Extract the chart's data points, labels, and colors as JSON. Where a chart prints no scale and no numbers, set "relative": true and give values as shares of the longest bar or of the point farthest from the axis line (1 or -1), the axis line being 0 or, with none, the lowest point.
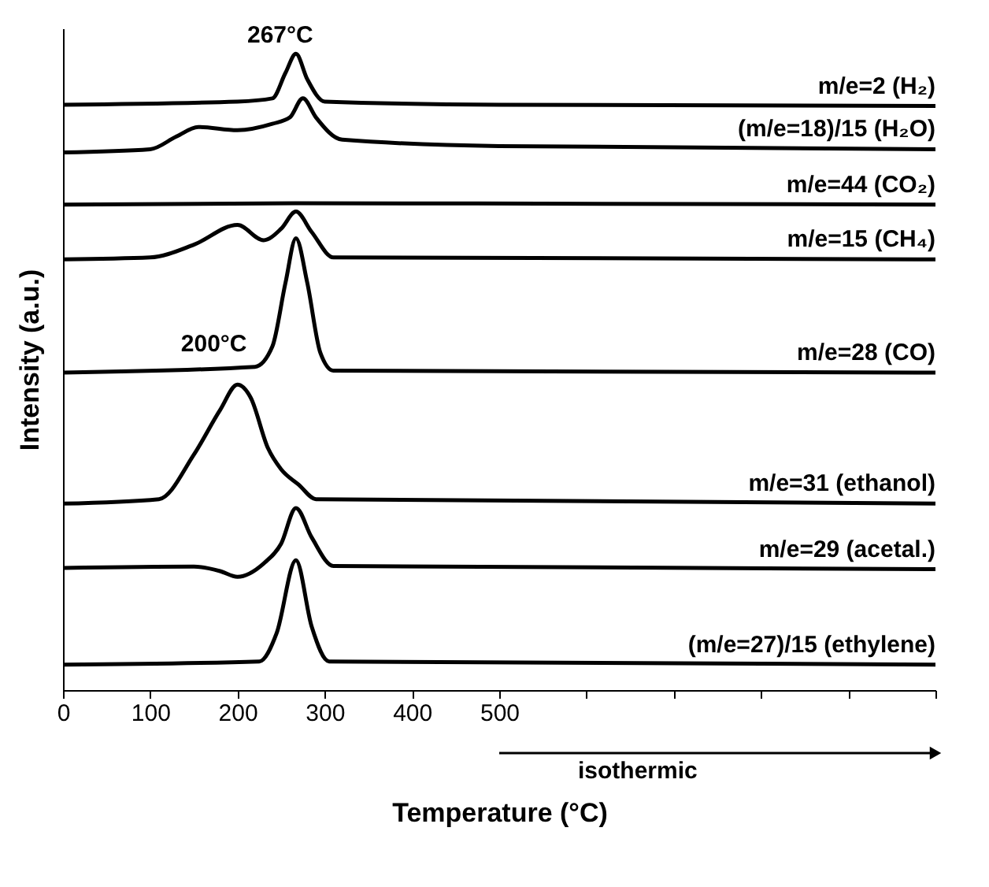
{
  "chart_data": {
    "type": "line",
    "relative": true,
    "xlabel": "Temperature (°C)",
    "ylabel": "Intensity (a.u.)",
    "xlim": [
      0,
      1000
    ],
    "xticks": [
      0,
      100,
      200,
      300,
      400,
      500,
      {
        "value": 600,
        "label": null
      },
      {
        "value": 700,
        "label": null
      },
      {
        "value": 800,
        "label": null
      },
      {
        "value": 900,
        "label": null
      },
      {
        "value": 1000,
        "label": null
      }
    ],
    "grid": false,
    "marker": "none",
    "line_style": "solid",
    "series": [
      {
        "name": "m/e=2 (H₂)",
        "color": "#000000",
        "x": [
          0,
          200,
          240,
          255,
          267,
          280,
          300,
          500,
          1000
        ],
        "values": [
          0.92,
          0.925,
          0.93,
          0.97,
          1.0,
          0.96,
          0.925,
          0.92,
          0.918
        ]
      },
      {
        "name": "(m/e=18)/15 (H₂O)",
        "color": "#000000",
        "x": [
          0,
          100,
          130,
          155,
          200,
          240,
          260,
          275,
          290,
          320,
          500,
          1000
        ],
        "values": [
          0.845,
          0.85,
          0.87,
          0.885,
          0.88,
          0.89,
          0.9,
          0.93,
          0.9,
          0.865,
          0.855,
          0.85
        ]
      },
      {
        "name": "m/e=44 (CO₂)",
        "color": "#000000",
        "x": [
          0,
          267,
          1000
        ],
        "values": [
          0.763,
          0.765,
          0.763
        ]
      },
      {
        "name": "m/e=15 (CH₄)",
        "color": "#000000",
        "x": [
          0,
          100,
          150,
          200,
          230,
          250,
          267,
          285,
          310,
          1000
        ],
        "values": [
          0.677,
          0.68,
          0.7,
          0.731,
          0.707,
          0.725,
          0.752,
          0.72,
          0.68,
          0.677
        ]
      },
      {
        "name": "m/e=28 (CO)",
        "color": "#000000",
        "x": [
          0,
          220,
          240,
          255,
          267,
          280,
          295,
          310,
          1000
        ],
        "values": [
          0.499,
          0.508,
          0.54,
          0.64,
          0.71,
          0.64,
          0.53,
          0.502,
          0.499
        ]
      },
      {
        "name": "m/e=31 (ethanol)",
        "color": "#000000",
        "x": [
          0,
          110,
          150,
          180,
          200,
          215,
          235,
          250,
          270,
          290,
          1000
        ],
        "values": [
          0.293,
          0.3,
          0.37,
          0.44,
          0.48,
          0.46,
          0.38,
          0.347,
          0.323,
          0.3,
          0.293
        ]
      },
      {
        "name": "m/e=29 (acetal.)",
        "color": "#000000",
        "x": [
          0,
          150,
          180,
          200,
          230,
          250,
          267,
          285,
          310,
          1000
        ],
        "values": [
          0.192,
          0.194,
          0.187,
          0.178,
          0.199,
          0.23,
          0.286,
          0.24,
          0.195,
          0.19
        ]
      },
      {
        "name": "(m/e=27)/15 (ethylene)",
        "color": "#000000",
        "x": [
          0,
          225,
          245,
          267,
          285,
          305,
          1000
        ],
        "values": [
          0.04,
          0.045,
          0.09,
          0.204,
          0.1,
          0.045,
          0.04
        ]
      }
    ],
    "annotations": [
      {
        "text": "267°C",
        "x": 267,
        "y": 1.0
      },
      {
        "text": "200°C",
        "x": 200,
        "y": 0.48
      },
      "isothermic"
    ]
  }
}
